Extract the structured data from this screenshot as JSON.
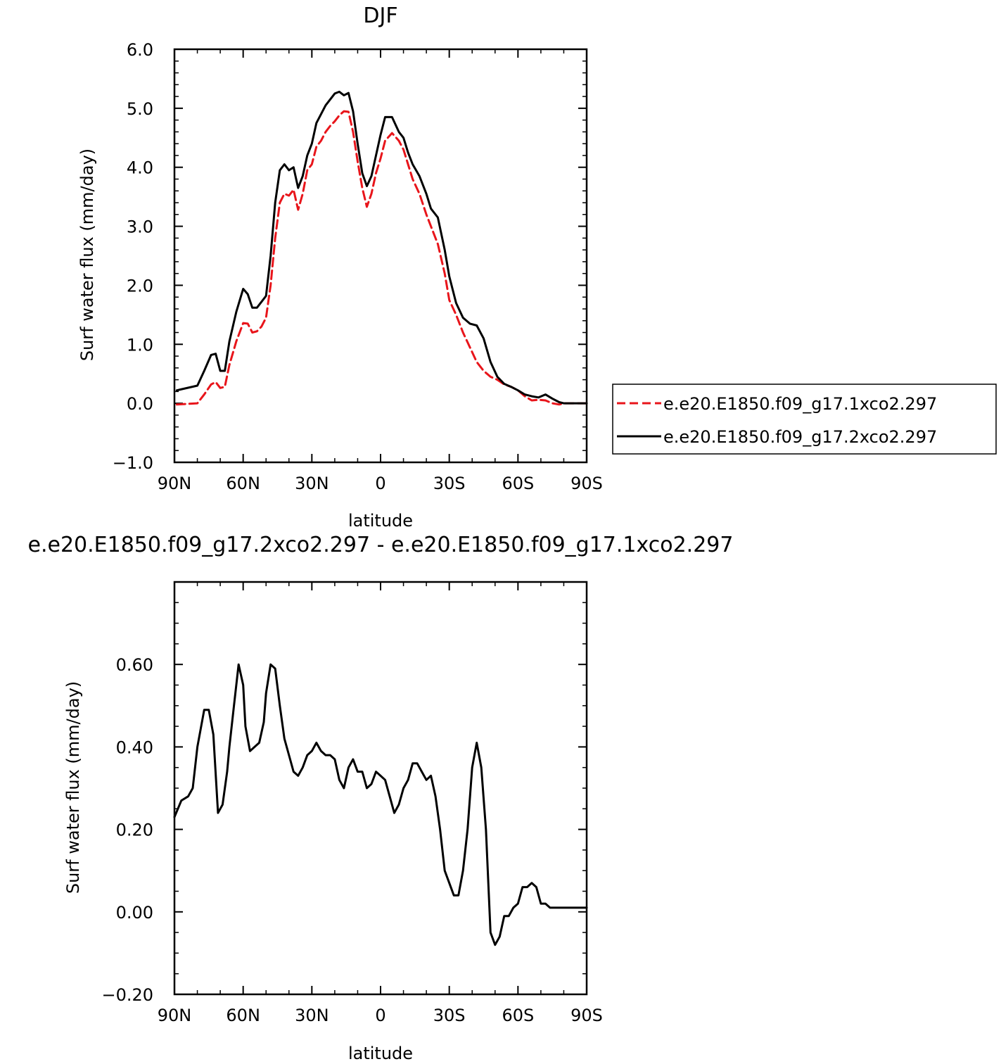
{
  "chart_data": [
    {
      "type": "line",
      "title": "DJF",
      "xlabel": "latitude",
      "ylabel": "Surf water flux (mm/day)",
      "xlim": [
        90,
        -90
      ],
      "ylim": [
        -1.0,
        6.0
      ],
      "x_tick_values": [
        90,
        60,
        30,
        0,
        -30,
        -60,
        -90
      ],
      "x_tick_labels": [
        "90N",
        "60N",
        "30N",
        "0",
        "30S",
        "60S",
        "90S"
      ],
      "y_tick_values": [
        -1.0,
        0.0,
        1.0,
        2.0,
        3.0,
        4.0,
        5.0,
        6.0
      ],
      "y_tick_labels": [
        "-1.0",
        "0.0",
        "1.0",
        "2.0",
        "3.0",
        "4.0",
        "5.0",
        "6.0"
      ],
      "legend": {
        "placement": "right"
      },
      "series": [
        {
          "name": "e.e20.E1850.f09_g17.1xco2.297",
          "color": "#e8151b",
          "dash": "dashed",
          "x": [
            89,
            80,
            77,
            74,
            72,
            70,
            68,
            66,
            63,
            60,
            58,
            56,
            54,
            52,
            50,
            48,
            46,
            44,
            42,
            40,
            38,
            36,
            34,
            32,
            30,
            28,
            26,
            24,
            22,
            20,
            18,
            16,
            14,
            12,
            10,
            8,
            6,
            4,
            2,
            0,
            -2,
            -5,
            -8,
            -10,
            -12,
            -14,
            -17,
            -20,
            -22,
            -25,
            -28,
            -30,
            -33,
            -36,
            -39,
            -42,
            -45,
            -48,
            -51,
            -54,
            -57,
            -60,
            -63,
            -66,
            -69,
            -72,
            -75,
            -78,
            -80,
            -83,
            -86,
            -88,
            -90
          ],
          "y": [
            -0.02,
            0.0,
            0.15,
            0.32,
            0.36,
            0.26,
            0.28,
            0.65,
            1.05,
            1.36,
            1.35,
            1.2,
            1.22,
            1.3,
            1.45,
            2.0,
            2.8,
            3.4,
            3.55,
            3.52,
            3.62,
            3.28,
            3.55,
            3.95,
            4.05,
            4.35,
            4.45,
            4.6,
            4.7,
            4.78,
            4.88,
            4.95,
            4.94,
            4.6,
            4.1,
            3.65,
            3.33,
            3.55,
            3.9,
            4.15,
            4.45,
            4.58,
            4.45,
            4.3,
            4.05,
            3.8,
            3.55,
            3.2,
            3.0,
            2.7,
            2.2,
            1.75,
            1.5,
            1.2,
            0.95,
            0.7,
            0.55,
            0.45,
            0.4,
            0.32,
            0.28,
            0.22,
            0.12,
            0.05,
            0.06,
            0.05,
            0.0,
            -0.02,
            0.0,
            0.0,
            0.0,
            0.0,
            0.0
          ]
        },
        {
          "name": "e.e20.E1850.f09_g17.2xco2.297",
          "color": "#000000",
          "dash": "solid",
          "x": [
            89,
            80,
            77,
            74,
            72,
            70,
            68,
            66,
            63,
            60,
            58,
            56,
            54,
            52,
            50,
            48,
            46,
            44,
            42,
            40,
            38,
            36,
            34,
            32,
            30,
            28,
            26,
            24,
            22,
            20,
            18,
            16,
            14,
            12,
            10,
            8,
            6,
            4,
            2,
            0,
            -2,
            -5,
            -8,
            -10,
            -12,
            -14,
            -17,
            -20,
            -22,
            -25,
            -28,
            -30,
            -33,
            -36,
            -39,
            -42,
            -45,
            -48,
            -51,
            -54,
            -57,
            -60,
            -63,
            -66,
            -69,
            -72,
            -75,
            -78,
            -80,
            -83,
            -86,
            -88,
            -90
          ],
          "y": [
            0.22,
            0.3,
            0.55,
            0.82,
            0.84,
            0.55,
            0.55,
            1.05,
            1.55,
            1.94,
            1.85,
            1.62,
            1.62,
            1.72,
            1.82,
            2.5,
            3.4,
            3.95,
            4.05,
            3.95,
            4.0,
            3.65,
            3.85,
            4.2,
            4.4,
            4.75,
            4.9,
            5.05,
            5.15,
            5.25,
            5.28,
            5.22,
            5.26,
            4.95,
            4.4,
            3.9,
            3.68,
            3.85,
            4.2,
            4.55,
            4.85,
            4.85,
            4.6,
            4.5,
            4.25,
            4.05,
            3.85,
            3.55,
            3.3,
            3.15,
            2.6,
            2.15,
            1.7,
            1.45,
            1.35,
            1.32,
            1.1,
            0.7,
            0.45,
            0.33,
            0.28,
            0.22,
            0.15,
            0.12,
            0.1,
            0.15,
            0.08,
            0.02,
            0.0,
            0.0,
            0.0,
            0.0,
            0.0
          ]
        }
      ]
    },
    {
      "type": "line",
      "title": "e.e20.E1850.f09_g17.2xco2.297 - e.e20.E1850.f09_g17.1xco2.297",
      "xlabel": "latitude",
      "ylabel": "Surf water flux (mm/day)",
      "xlim": [
        90,
        -90
      ],
      "ylim": [
        -0.2,
        0.8
      ],
      "x_tick_values": [
        90,
        60,
        30,
        0,
        -30,
        -60,
        -90
      ],
      "x_tick_labels": [
        "90N",
        "60N",
        "30N",
        "0",
        "30S",
        "60S",
        "90S"
      ],
      "y_tick_values": [
        -0.2,
        0.0,
        0.2,
        0.4,
        0.6
      ],
      "y_tick_labels": [
        "-0.20",
        "0.00",
        "0.20",
        "0.40",
        "0.60"
      ],
      "series": [
        {
          "color": "#000000",
          "dash": "solid",
          "x": [
            90,
            87,
            84,
            82,
            80,
            77,
            75,
            73,
            71,
            69,
            67,
            66,
            64,
            62,
            60,
            59,
            57,
            55,
            53,
            51,
            50,
            48,
            46,
            44,
            42,
            40,
            38,
            36,
            34,
            32,
            30,
            28,
            26,
            24,
            22,
            20,
            18,
            16,
            14,
            12,
            10,
            8,
            6,
            4,
            2,
            0,
            -2,
            -4,
            -6,
            -8,
            -10,
            -12,
            -14,
            -16,
            -18,
            -20,
            -22,
            -24,
            -26,
            -28,
            -30,
            -32,
            -34,
            -36,
            -38,
            -40,
            -42,
            -44,
            -46,
            -48,
            -50,
            -52,
            -54,
            -56,
            -58,
            -60,
            -62,
            -64,
            -66,
            -68,
            -70,
            -72,
            -74,
            -76,
            -78,
            -80,
            -82,
            -84,
            -86,
            -88,
            -90
          ],
          "y": [
            0.23,
            0.27,
            0.28,
            0.3,
            0.4,
            0.49,
            0.49,
            0.43,
            0.24,
            0.26,
            0.34,
            0.4,
            0.5,
            0.6,
            0.55,
            0.45,
            0.39,
            0.4,
            0.41,
            0.46,
            0.53,
            0.6,
            0.59,
            0.5,
            0.42,
            0.38,
            0.34,
            0.33,
            0.35,
            0.38,
            0.39,
            0.41,
            0.39,
            0.38,
            0.38,
            0.37,
            0.32,
            0.3,
            0.35,
            0.37,
            0.34,
            0.34,
            0.3,
            0.31,
            0.34,
            0.33,
            0.32,
            0.28,
            0.24,
            0.26,
            0.3,
            0.32,
            0.36,
            0.36,
            0.34,
            0.32,
            0.33,
            0.28,
            0.2,
            0.1,
            0.07,
            0.04,
            0.04,
            0.1,
            0.2,
            0.35,
            0.41,
            0.35,
            0.2,
            -0.05,
            -0.08,
            -0.06,
            -0.01,
            -0.01,
            0.01,
            0.02,
            0.06,
            0.06,
            0.07,
            0.06,
            0.02,
            0.02,
            0.01,
            0.01,
            0.01,
            0.01,
            0.01,
            0.01,
            0.01,
            0.01,
            0.01
          ]
        }
      ]
    }
  ]
}
